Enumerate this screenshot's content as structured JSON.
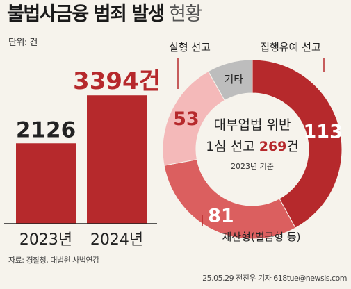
{
  "header": {
    "title_strong": "불법사금융 범죄 발생",
    "title_light": "현황",
    "unit": "단위: 건"
  },
  "colors": {
    "bar": "#b6292c",
    "accent_text": "#b6292c",
    "slice_dark": "#b6292c",
    "slice_mid": "#db5f5f",
    "slice_light": "#f4b9b9",
    "slice_gray": "#bdbdbd"
  },
  "chart_data": [
    {
      "type": "bar",
      "categories": [
        "2023년",
        "2024년"
      ],
      "values": [
        2126,
        3394
      ],
      "value_labels": [
        "2126",
        "3394건"
      ],
      "ylim": [
        0,
        3600
      ],
      "grid": false
    },
    {
      "type": "pie",
      "variant": "donut",
      "center_text": {
        "line1": "대부업법 위반",
        "line2_prefix": "1심 선고 ",
        "line2_value": "269",
        "line2_suffix": "건",
        "note": "2023년 기준"
      },
      "slices": [
        {
          "label": "집행유예 선고",
          "value": 113,
          "value_label": "113",
          "color": "#b6292c"
        },
        {
          "label": "재산형(벌금형 등)",
          "value": 81,
          "value_label": "81",
          "color": "#db5f5f"
        },
        {
          "label": "실형 선고",
          "value": 53,
          "value_label": "53",
          "color": "#f4b9b9"
        },
        {
          "label": "기타",
          "value": 22,
          "value_label": "기타",
          "color": "#bdbdbd"
        }
      ]
    }
  ],
  "footer": {
    "source": "자료: 경찰청, 대법원 사법연감",
    "credit": "25.05.29 전진우 기자 618tue@newsis.com"
  }
}
